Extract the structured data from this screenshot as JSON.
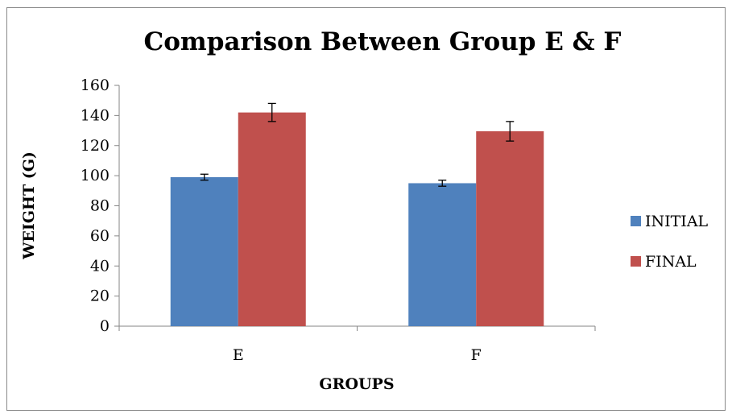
{
  "chart_data": {
    "type": "bar",
    "title": "Comparison Between Group E & F",
    "xlabel": "GROUPS",
    "ylabel": "WEIGHT (G)",
    "categories": [
      "E",
      "F"
    ],
    "ylim": [
      0,
      160
    ],
    "yticks": [
      0,
      20,
      40,
      60,
      80,
      100,
      120,
      140,
      160
    ],
    "grid": false,
    "legend": "right",
    "series": [
      {
        "name": "INITIAL",
        "values": [
          99,
          95
        ],
        "errors": [
          2,
          2
        ],
        "color": "#4F81BD"
      },
      {
        "name": "FINAL",
        "values": [
          142,
          129.5
        ],
        "errors": [
          6,
          6.5
        ],
        "color": "#C0504D"
      }
    ]
  }
}
